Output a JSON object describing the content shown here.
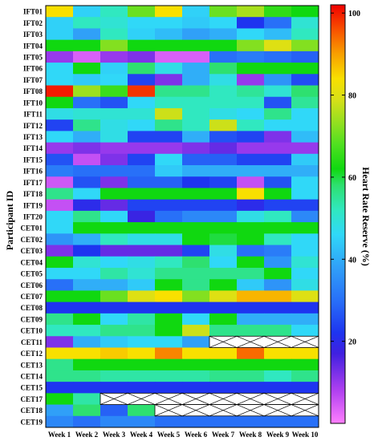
{
  "chart_data": {
    "type": "heatmap",
    "ylabel": "Participant ID",
    "colorbar_label": "Heart Rate Reserve (%)",
    "colorbar_ticks": [
      20,
      40,
      60,
      80,
      100
    ],
    "colorbar_range": [
      0,
      102
    ],
    "columns": [
      "Week 1",
      "Week 2",
      "Week 3",
      "Week 4",
      "Week 5",
      "Week 6",
      "Week 7",
      "Week 8",
      "Week 9",
      "Week 10"
    ],
    "colormap": [
      [
        0,
        "#ff7fff"
      ],
      [
        8,
        "#b040f0"
      ],
      [
        17,
        "#4020e0"
      ],
      [
        22,
        "#1e34f0"
      ],
      [
        30,
        "#2870f8"
      ],
      [
        38,
        "#30a0f8"
      ],
      [
        46,
        "#30d8f8"
      ],
      [
        52,
        "#30e8c0"
      ],
      [
        58,
        "#2ee070"
      ],
      [
        62,
        "#10d810"
      ],
      [
        68,
        "#50e020"
      ],
      [
        73,
        "#90e020"
      ],
      [
        79,
        "#d8e018"
      ],
      [
        84,
        "#f8e000"
      ],
      [
        90,
        "#f8a000"
      ],
      [
        96,
        "#f85000"
      ],
      [
        102,
        "#f00000"
      ]
    ],
    "rows": [
      {
        "id": "IFT01",
        "values": [
          84,
          45,
          52,
          70,
          84,
          45,
          70,
          75,
          65,
          62
        ]
      },
      {
        "id": "IFT02",
        "values": [
          45,
          52,
          50,
          46,
          46,
          44,
          46,
          22,
          30,
          50
        ]
      },
      {
        "id": "IFT03",
        "values": [
          45,
          38,
          52,
          45,
          42,
          38,
          40,
          46,
          42,
          52
        ]
      },
      {
        "id": "IFT04",
        "values": [
          62,
          62,
          72,
          62,
          62,
          62,
          62,
          72,
          80,
          72
        ]
      },
      {
        "id": "IFT05",
        "values": [
          10,
          4,
          10,
          12,
          4,
          4,
          30,
          32,
          30,
          28
        ]
      },
      {
        "id": "IFT06",
        "values": [
          46,
          62,
          45,
          58,
          48,
          40,
          58,
          62,
          62,
          62
        ]
      },
      {
        "id": "IFT07",
        "values": [
          46,
          44,
          46,
          24,
          12,
          40,
          48,
          10,
          36,
          25
        ]
      },
      {
        "id": "IFT08",
        "values": [
          100,
          74,
          66,
          98,
          56,
          56,
          52,
          55,
          50,
          58
        ]
      },
      {
        "id": "IFT10",
        "values": [
          62,
          30,
          26,
          46,
          52,
          52,
          52,
          52,
          26,
          55
        ]
      },
      {
        "id": "IFT11",
        "values": [
          48,
          50,
          50,
          50,
          78,
          52,
          48,
          46,
          56,
          46
        ]
      },
      {
        "id": "IFT12",
        "values": [
          24,
          56,
          48,
          46,
          56,
          52,
          78,
          52,
          46,
          46
        ]
      },
      {
        "id": "IFT13",
        "values": [
          46,
          40,
          48,
          24,
          24,
          40,
          26,
          24,
          12,
          42
        ]
      },
      {
        "id": "IFT14",
        "values": [
          10,
          12,
          10,
          10,
          10,
          12,
          14,
          10,
          10,
          10
        ]
      },
      {
        "id": "IFT15",
        "values": [
          26,
          6,
          12,
          24,
          46,
          28,
          28,
          24,
          24,
          44
        ]
      },
      {
        "id": "IFT16",
        "values": [
          32,
          30,
          30,
          30,
          44,
          40,
          40,
          40,
          40,
          40
        ]
      },
      {
        "id": "IFT17",
        "values": [
          5,
          26,
          12,
          28,
          28,
          22,
          24,
          6,
          26,
          46
        ]
      },
      {
        "id": "IFT18",
        "values": [
          56,
          46,
          62,
          62,
          62,
          62,
          62,
          84,
          62,
          46
        ]
      },
      {
        "id": "IFT19",
        "values": [
          6,
          20,
          14,
          24,
          24,
          24,
          24,
          20,
          24,
          24
        ]
      },
      {
        "id": "IFT20",
        "values": [
          46,
          56,
          46,
          18,
          30,
          34,
          34,
          48,
          52,
          34
        ]
      },
      {
        "id": "CET01",
        "values": [
          46,
          62,
          62,
          62,
          62,
          62,
          62,
          62,
          62,
          62
        ]
      },
      {
        "id": "CET02",
        "values": [
          36,
          40,
          52,
          48,
          48,
          62,
          60,
          62,
          52,
          46
        ]
      },
      {
        "id": "CET03",
        "values": [
          12,
          22,
          14,
          14,
          14,
          24,
          48,
          30,
          32,
          46
        ]
      },
      {
        "id": "CET04",
        "values": [
          62,
          50,
          46,
          48,
          52,
          58,
          46,
          62,
          36,
          50
        ]
      },
      {
        "id": "CET05",
        "values": [
          46,
          46,
          54,
          50,
          56,
          56,
          56,
          56,
          62,
          46
        ]
      },
      {
        "id": "CET06",
        "values": [
          30,
          40,
          40,
          44,
          62,
          56,
          62,
          44,
          36,
          48
        ]
      },
      {
        "id": "CET07",
        "values": [
          62,
          62,
          70,
          80,
          84,
          72,
          80,
          88,
          88,
          80
        ]
      },
      {
        "id": "CET08",
        "values": [
          22,
          22,
          22,
          22,
          22,
          22,
          22,
          22,
          22,
          22
        ]
      },
      {
        "id": "CET09",
        "values": [
          56,
          62,
          46,
          54,
          62,
          46,
          62,
          40,
          40,
          40
        ]
      },
      {
        "id": "CET10",
        "values": [
          52,
          52,
          56,
          56,
          62,
          78,
          56,
          56,
          56,
          46
        ]
      },
      {
        "id": "CET11",
        "values": [
          12,
          40,
          44,
          46,
          46,
          38,
          null,
          null,
          null,
          null
        ]
      },
      {
        "id": "CET12",
        "values": [
          84,
          84,
          86,
          84,
          92,
          84,
          84,
          94,
          84,
          84
        ]
      },
      {
        "id": "CET13",
        "values": [
          56,
          62,
          62,
          62,
          62,
          62,
          62,
          62,
          62,
          62
        ]
      },
      {
        "id": "CET14",
        "values": [
          56,
          56,
          54,
          54,
          54,
          54,
          56,
          56,
          52,
          56
        ]
      },
      {
        "id": "CET15",
        "values": [
          22,
          22,
          22,
          22,
          22,
          22,
          22,
          22,
          22,
          22
        ]
      },
      {
        "id": "CET17",
        "values": [
          62,
          54,
          null,
          null,
          null,
          null,
          null,
          null,
          null,
          null
        ]
      },
      {
        "id": "CET18",
        "values": [
          38,
          58,
          28,
          58,
          null,
          null,
          null,
          null,
          null,
          null
        ]
      },
      {
        "id": "CET19",
        "values": [
          34,
          30,
          34,
          34,
          30,
          30,
          30,
          30,
          30,
          30
        ]
      }
    ]
  }
}
